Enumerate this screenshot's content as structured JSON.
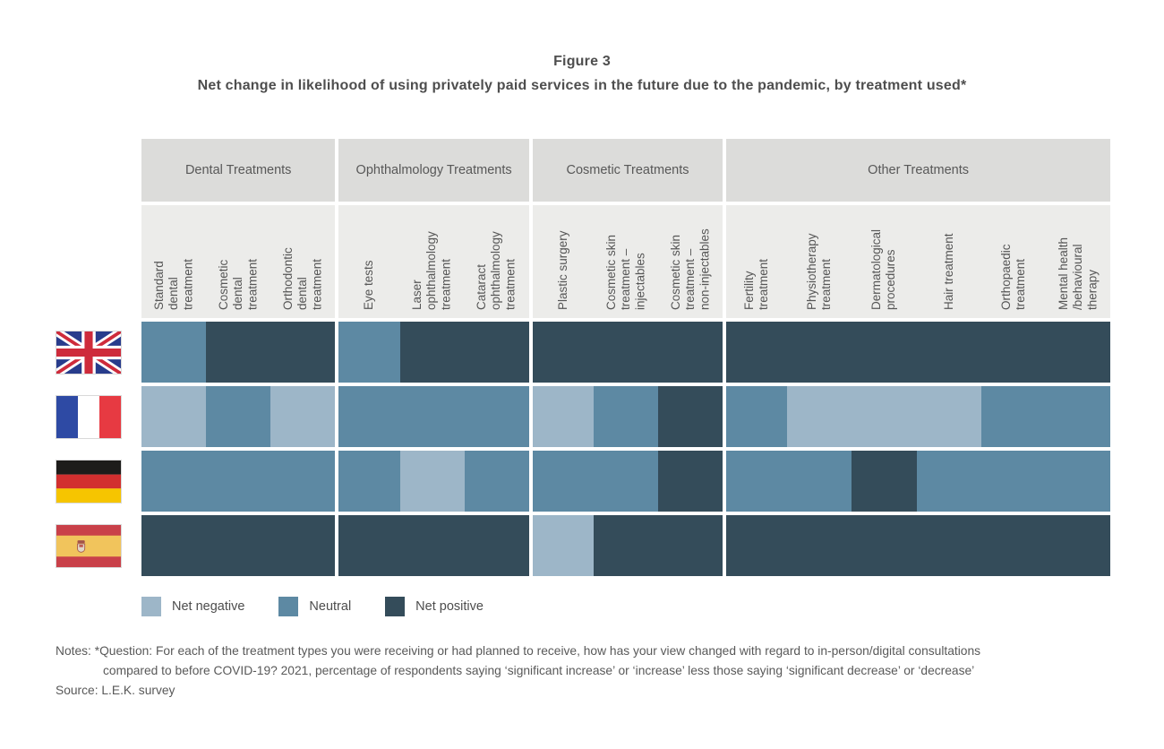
{
  "figure": {
    "label": "Figure 3",
    "title": "Net change in likelihood of using privately paid services in the future due to the pandemic, by treatment used*"
  },
  "colors": {
    "negative": "#9db6c8",
    "neutral": "#5d89a3",
    "positive": "#344c5a",
    "group_header_bg": "#dcdcda",
    "label_row_bg": "#ececea"
  },
  "chart_data": {
    "type": "heatmap",
    "title": "Figure 3",
    "subtitle": "Net change in likelihood of using privately paid services in the future due to the pandemic, by treatment used*",
    "legend_position": "bottom",
    "x_groups": [
      {
        "label": "Dental Treatments",
        "span": 3
      },
      {
        "label": "Ophthalmology Treatments",
        "span": 3
      },
      {
        "label": "Cosmetic Treatments",
        "span": 3
      },
      {
        "label": "Other Treatments",
        "span": 6
      }
    ],
    "x_categories": [
      "Standard dental treatment",
      "Cosmetic dental treatment",
      "Orthodontic dental treatment",
      "Eye tests",
      "Laser ophthalmology treatment",
      "Cataract ophthalmology treatment",
      "Plastic surgery",
      "Cosmetic skin treatment – injectables",
      "Cosmetic skin treatment – non-injectables",
      "Fertility treatment",
      "Physiotherapy treatment",
      "Dermatological procedures",
      "Hair treatment",
      "Orthopaedic treatment",
      "Mental health /behavioural therapy"
    ],
    "x_labels_wrapped": [
      "Standard\ndental\ntreatment",
      "Cosmetic\ndental\ntreatment",
      "Orthodontic\ndental\ntreatment",
      "Eye tests",
      "Laser\nophthalmology\ntreatment",
      "Cataract\nophthalmology\ntreatment",
      "Plastic surgery",
      "Cosmetic skin\ntreatment –\ninjectables",
      "Cosmetic skin\ntreatment –\nnon-injectables",
      "Fertility\ntreatment",
      "Physiotherapy\ntreatment",
      "Dermatological\nprocedures",
      "Hair treatment",
      "Orthopaedic\ntreatment",
      "Mental health\n/behavioural\ntherapy"
    ],
    "y_categories": [
      "United Kingdom",
      "France",
      "Germany",
      "Spain"
    ],
    "rows": [
      {
        "country": "United Kingdom",
        "flag": "uk",
        "values": [
          "neutral",
          "positive",
          "positive",
          "neutral",
          "positive",
          "positive",
          "positive",
          "positive",
          "positive",
          "positive",
          "positive",
          "positive",
          "positive",
          "positive",
          "positive"
        ]
      },
      {
        "country": "France",
        "flag": "france",
        "values": [
          "negative",
          "neutral",
          "negative",
          "neutral",
          "neutral",
          "neutral",
          "negative",
          "neutral",
          "positive",
          "neutral",
          "negative",
          "negative",
          "negative",
          "neutral",
          "neutral"
        ]
      },
      {
        "country": "Germany",
        "flag": "germany",
        "values": [
          "neutral",
          "neutral",
          "neutral",
          "neutral",
          "negative",
          "neutral",
          "neutral",
          "neutral",
          "positive",
          "neutral",
          "neutral",
          "positive",
          "neutral",
          "neutral",
          "neutral"
        ]
      },
      {
        "country": "Spain",
        "flag": "spain",
        "values": [
          "positive",
          "positive",
          "positive",
          "positive",
          "positive",
          "positive",
          "negative",
          "positive",
          "positive",
          "positive",
          "positive",
          "positive",
          "positive",
          "positive",
          "positive"
        ]
      }
    ],
    "legend": [
      {
        "key": "negative",
        "label": "Net negative",
        "color": "#9db6c8"
      },
      {
        "key": "neutral",
        "label": "Neutral",
        "color": "#5d89a3"
      },
      {
        "key": "positive",
        "label": "Net positive",
        "color": "#344c5a"
      }
    ]
  },
  "notes": {
    "line1": "Notes: *Question: For each of the treatment types you were receiving or had planned to receive, how has your view changed with regard to in-person/digital consultations",
    "line2": "compared to before COVID-19? 2021, percentage of respondents saying ‘significant increase’ or ‘increase’ less those saying ‘significant decrease’ or ‘decrease’",
    "source": "Source: L.E.K. survey"
  }
}
